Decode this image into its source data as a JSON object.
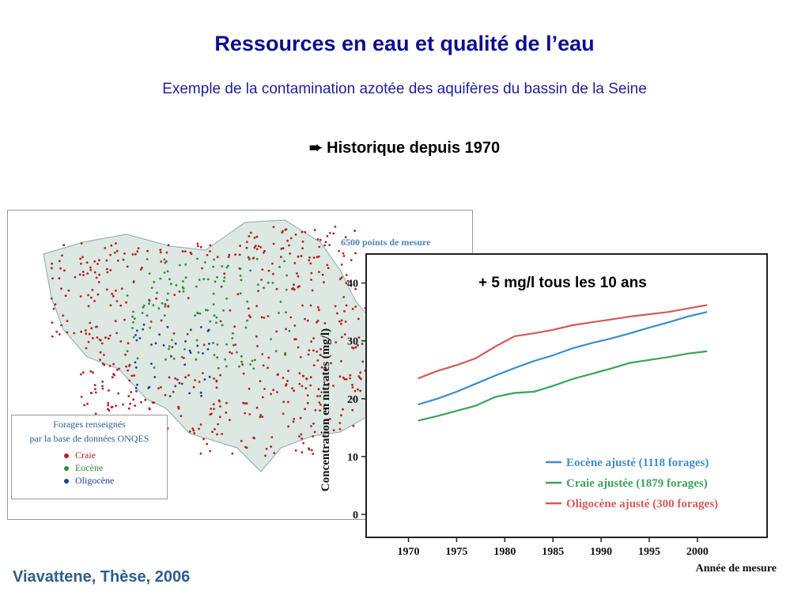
{
  "slide": {
    "title": "Ressources en eau et qualité de l’eau",
    "subtitle": "Exemple de la contamination azotée des aquifères du bassin de la Seine",
    "section": "➨ Historique depuis 1970",
    "source": "Viavattene, Thèse, 2006"
  },
  "map": {
    "points_label": "6500 points de mesure",
    "legend": {
      "title_line1": "Forages renseignés",
      "title_line2": "par la base de données ONQES",
      "items": [
        {
          "label": "Craie",
          "color": "#b22222"
        },
        {
          "label": "Eocène",
          "color": "#2e8b3a"
        },
        {
          "label": "Oligocène",
          "color": "#1f3f8f"
        }
      ]
    }
  },
  "chart_data": {
    "type": "line",
    "title": "",
    "annotation": "+ 5 mg/l tous les 10 ans",
    "xlabel": "Année de mesure",
    "ylabel": "Concentration en nitrates (mg/l)",
    "xlim": [
      1967,
      2006
    ],
    "ylim": [
      0,
      42
    ],
    "xticks": [
      1970,
      1975,
      1980,
      1985,
      1990,
      1995,
      2000
    ],
    "yticks": [
      0,
      10,
      20,
      30,
      40
    ],
    "legend_position": "bottom-right",
    "series": [
      {
        "name": "Eocène ajusté (1118 forages)",
        "color": "#3b8ec9",
        "x": [
          1971,
          1973,
          1975,
          1977,
          1979,
          1981,
          1983,
          1985,
          1987,
          1989,
          1991,
          1993,
          1995,
          1997,
          1999,
          2001
        ],
        "values": [
          19.0,
          20.0,
          21.2,
          22.6,
          24.0,
          25.3,
          26.5,
          27.5,
          28.7,
          29.6,
          30.4,
          31.3,
          32.3,
          33.2,
          34.2,
          35.0
        ]
      },
      {
        "name": "Craie ajustée (1879 forages)",
        "color": "#3aa35a",
        "x": [
          1971,
          1973,
          1975,
          1977,
          1979,
          1981,
          1983,
          1985,
          1987,
          1989,
          1991,
          1993,
          1995,
          1997,
          1999,
          2001
        ],
        "values": [
          16.2,
          17.0,
          17.9,
          18.8,
          20.3,
          21.0,
          21.2,
          22.2,
          23.4,
          24.3,
          25.2,
          26.2,
          26.7,
          27.2,
          27.8,
          28.2
        ]
      },
      {
        "name": "Oligocène ajusté (300 forages)",
        "color": "#d45a5a",
        "x": [
          1971,
          1973,
          1975,
          1977,
          1979,
          1981,
          1983,
          1985,
          1987,
          1989,
          1991,
          1993,
          1995,
          1997,
          1999,
          2001
        ],
        "values": [
          23.5,
          24.8,
          25.8,
          27.0,
          29.0,
          30.8,
          31.3,
          31.9,
          32.7,
          33.2,
          33.7,
          34.2,
          34.6,
          35.0,
          35.6,
          36.2
        ]
      }
    ]
  }
}
